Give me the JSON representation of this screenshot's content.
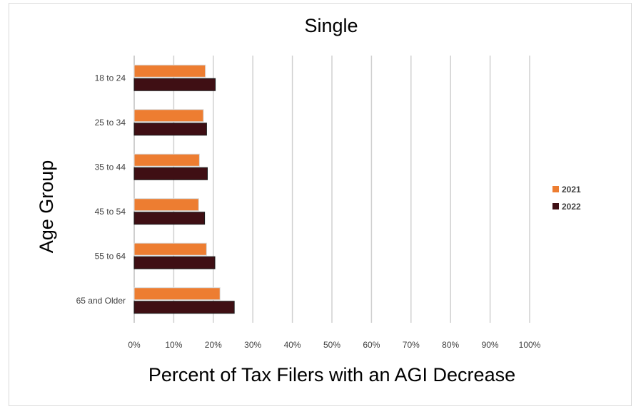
{
  "chart_data": {
    "type": "bar",
    "orientation": "horizontal",
    "title": "Single",
    "xlabel": "Percent of Tax Filers with an AGI Decrease",
    "ylabel": "Age Group",
    "categories": [
      "18 to 24",
      "25 to 34",
      "35 to 44",
      "45 to 54",
      "55 to 64",
      "65 and Older"
    ],
    "series": [
      {
        "name": "2021",
        "color": "#ED7D31",
        "values": [
          0.18,
          0.175,
          0.165,
          0.163,
          0.183,
          0.217
        ]
      },
      {
        "name": "2022",
        "color": "#3F0F14",
        "values": [
          0.205,
          0.183,
          0.185,
          0.178,
          0.204,
          0.253
        ]
      }
    ],
    "xlim": [
      0,
      1
    ],
    "xticks": [
      "0%",
      "10%",
      "20%",
      "30%",
      "40%",
      "50%",
      "60%",
      "70%",
      "80%",
      "90%",
      "100%"
    ],
    "grid": true,
    "legend_position": "right"
  }
}
